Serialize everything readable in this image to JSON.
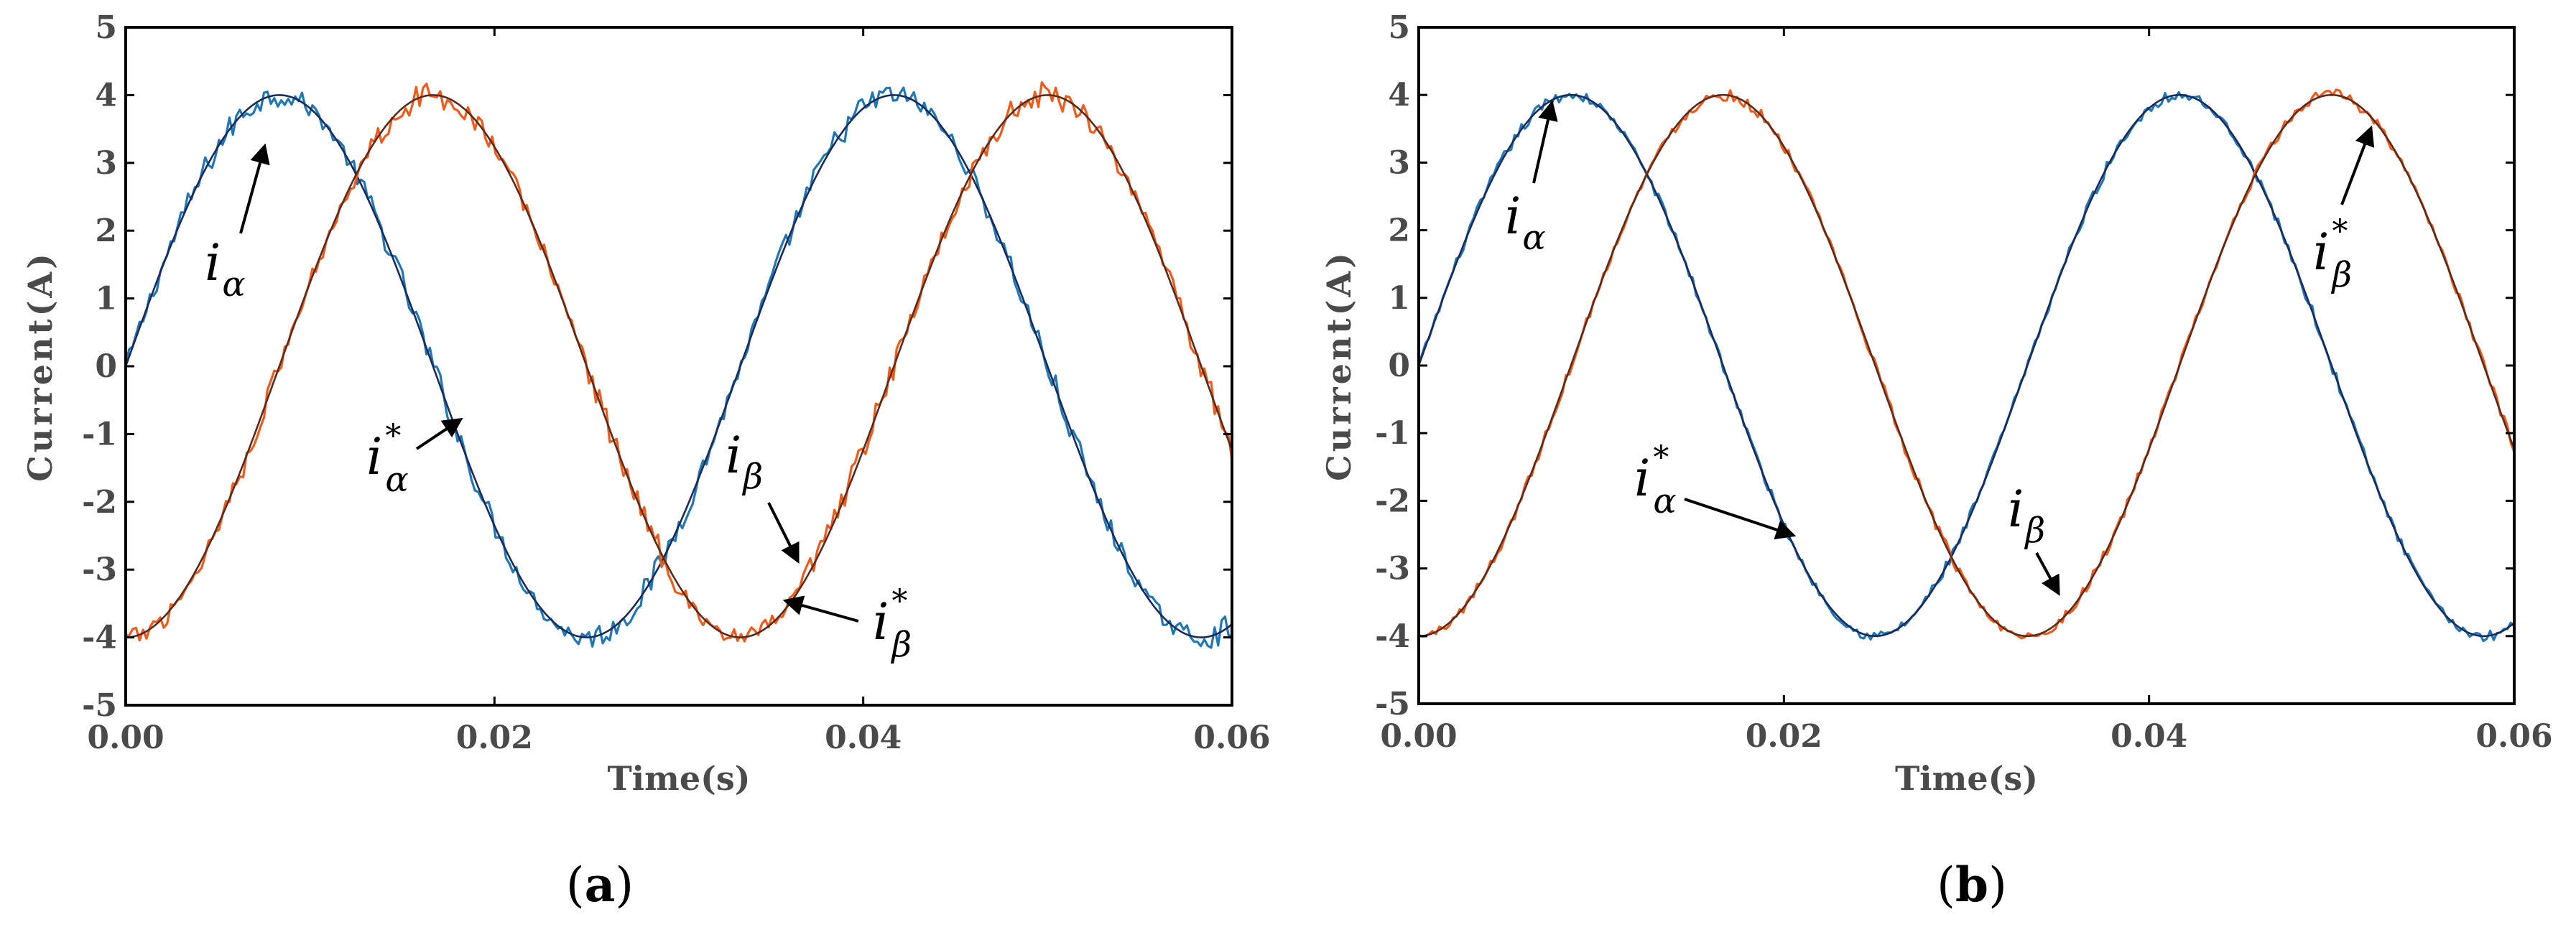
{
  "chart_data": [
    {
      "panel": "(a)",
      "panel_letter": "a",
      "type": "line",
      "xlabel": "Time(s)",
      "ylabel": "Current(A)",
      "xlim": [
        0,
        0.06
      ],
      "ylim": [
        -5,
        5
      ],
      "xticks": [
        "0.00",
        "0.02",
        "0.04",
        "0.06"
      ],
      "yticks": [
        "5",
        "4",
        "3",
        "2",
        "1",
        "0",
        "-1",
        "-2",
        "-3",
        "-4",
        "-5"
      ],
      "series": [
        {
          "name": "i_alpha (measured)",
          "color": "#1f77b4",
          "amplitude": 4,
          "frequency_hz": 30,
          "phase": "sin",
          "noise": 0.18
        },
        {
          "name": "i_alpha* (reference)",
          "color": "#1a2a5a",
          "amplitude": 4,
          "frequency_hz": 30,
          "phase": "sin",
          "noise": 0
        },
        {
          "name": "i_beta (measured)",
          "color": "#f05a1a",
          "amplitude": 4,
          "frequency_hz": 30,
          "phase": "-cos",
          "noise": 0.18
        },
        {
          "name": "i_beta* (reference)",
          "color": "#5a2a1a",
          "amplitude": 4,
          "frequency_hz": 30,
          "phase": "-cos",
          "noise": 0
        }
      ],
      "annotations": [
        {
          "base": "i",
          "sub": "α",
          "sup": ""
        },
        {
          "base": "i",
          "sub": "α",
          "sup": "*"
        },
        {
          "base": "i",
          "sub": "β",
          "sup": ""
        },
        {
          "base": "i",
          "sub": "β",
          "sup": "*"
        }
      ]
    },
    {
      "panel": "(b)",
      "panel_letter": "b",
      "type": "line",
      "xlabel": "Time(s)",
      "ylabel": "Current(A)",
      "xlim": [
        0,
        0.06
      ],
      "ylim": [
        -5,
        5
      ],
      "xticks": [
        "0.00",
        "0.02",
        "0.04",
        "0.06"
      ],
      "yticks": [
        "5",
        "4",
        "3",
        "2",
        "1",
        "0",
        "-1",
        "-2",
        "-3",
        "-4",
        "-5"
      ],
      "series": [
        {
          "name": "i_alpha (measured)",
          "color": "#1f77b4",
          "amplitude": 4,
          "frequency_hz": 30,
          "phase": "sin",
          "noise": 0.08
        },
        {
          "name": "i_alpha* (reference)",
          "color": "#1a2a5a",
          "amplitude": 4,
          "frequency_hz": 30,
          "phase": "sin",
          "noise": 0
        },
        {
          "name": "i_beta (measured)",
          "color": "#f05a1a",
          "amplitude": 4,
          "frequency_hz": 30,
          "phase": "-cos",
          "noise": 0.08
        },
        {
          "name": "i_beta* (reference)",
          "color": "#5a2a1a",
          "amplitude": 4,
          "frequency_hz": 30,
          "phase": "-cos",
          "noise": 0
        }
      ],
      "annotations": [
        {
          "base": "i",
          "sub": "α",
          "sup": ""
        },
        {
          "base": "i",
          "sub": "α",
          "sup": "*"
        },
        {
          "base": "i",
          "sub": "β",
          "sup": ""
        },
        {
          "base": "i",
          "sub": "β",
          "sup": "*"
        }
      ]
    }
  ]
}
